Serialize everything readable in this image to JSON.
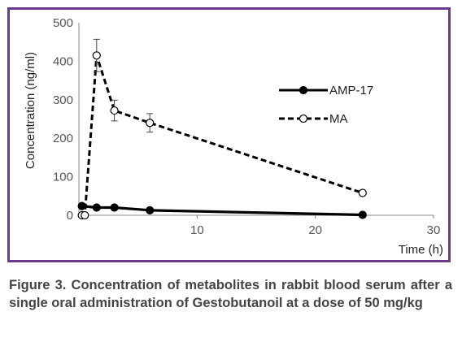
{
  "chart_data": {
    "type": "line",
    "xlabel": "Time (h)",
    "ylabel": "Concentration (ng/ml)",
    "xlim": [
      0,
      30
    ],
    "ylim": [
      0,
      500
    ],
    "xticks": [
      10,
      20,
      30
    ],
    "yticks": [
      0,
      100,
      200,
      300,
      400,
      500
    ],
    "grid": false,
    "legend_position": "right",
    "series": [
      {
        "name": "AMP-17",
        "style": "solid",
        "marker": "filled-circle",
        "color": "#000000",
        "x": [
          0.25,
          1.5,
          3,
          6,
          24
        ],
        "y": [
          24,
          20,
          20,
          13,
          1
        ]
      },
      {
        "name": "MA",
        "style": "dashed",
        "marker": "open-circle",
        "color": "#000000",
        "x": [
          0.25,
          0.5,
          1.5,
          3,
          6,
          24
        ],
        "y": [
          0,
          0,
          415,
          272,
          240,
          58
        ],
        "yerr": [
          0,
          0,
          42,
          27,
          24,
          0
        ]
      }
    ]
  },
  "caption": "Figure 3. Concentration of metabolites in rabbit blood serum after a single oral administration of Gestobutanoil at a dose of 50 mg/kg",
  "colors": {
    "frame": "#6b3a8a",
    "caption_text": "#444444"
  }
}
